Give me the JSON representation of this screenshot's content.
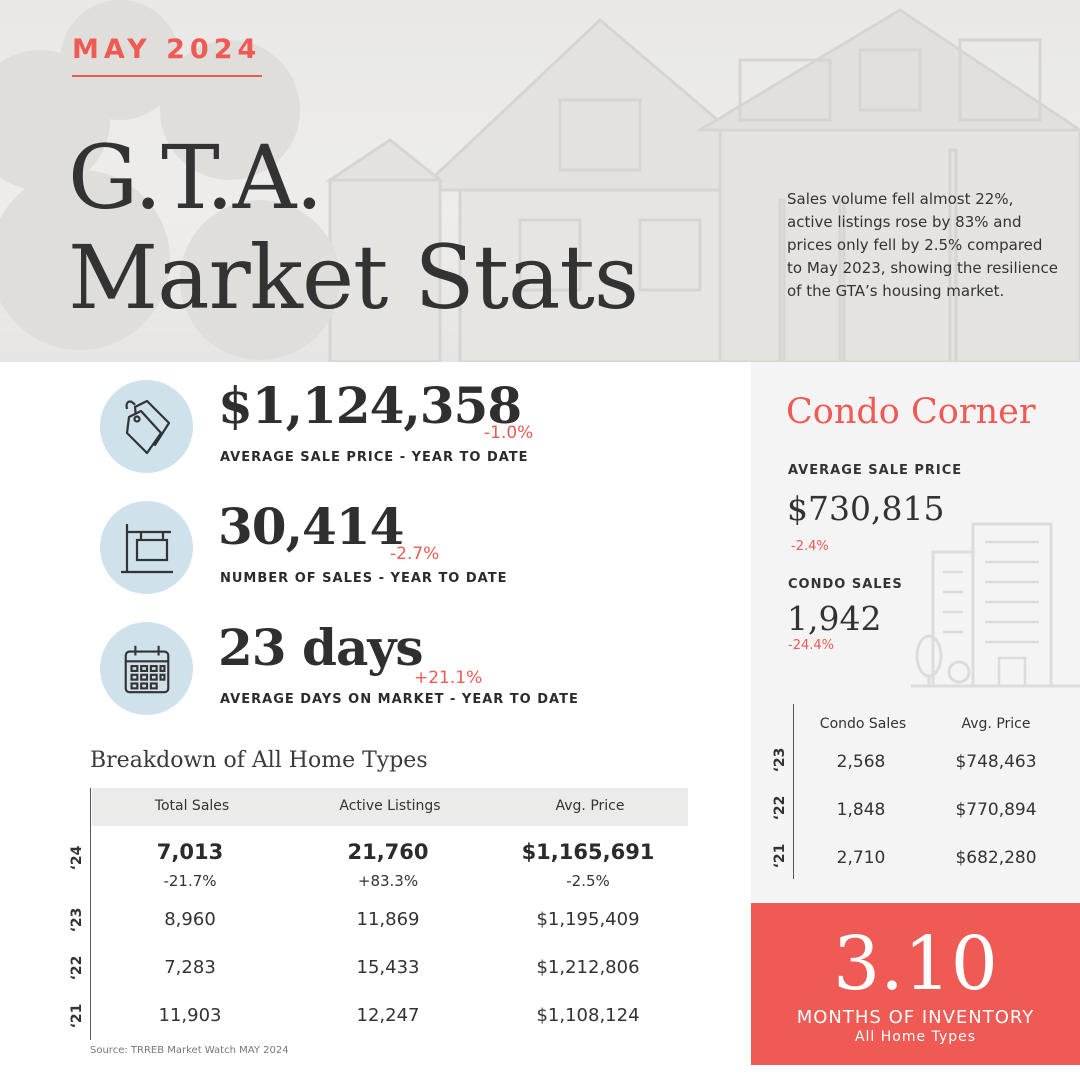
{
  "header": {
    "month": "MAY 2024",
    "title_line1": "G.T.A.",
    "title_line2": "Market Stats",
    "intro": "Sales volume fell almost 22%, active listings rose by 83% and prices only fell by 2.5% compared to May 2023, showing the resilience of the GTA’s housing market."
  },
  "stats": [
    {
      "icon": "price-tag-icon",
      "value": "$1,124,358",
      "change": "-1.0%",
      "label": "AVERAGE SALE PRICE - YEAR TO DATE"
    },
    {
      "icon": "sale-sign-icon",
      "value": "30,414",
      "change": "-2.7%",
      "label": "NUMBER OF SALES - YEAR TO DATE"
    },
    {
      "icon": "calendar-icon",
      "value": "23 days",
      "change": "+21.1%",
      "label": "AVERAGE DAYS ON MARKET - YEAR TO DATE"
    }
  ],
  "breakdown": {
    "title": "Breakdown of All Home Types",
    "columns": [
      "Total Sales",
      "Active Listings",
      "Avg. Price"
    ],
    "rows": [
      {
        "year": "‘24",
        "total_sales": "7,013",
        "total_sales_change": "-21.7%",
        "active_listings": "21,760",
        "active_listings_change": "+83.3%",
        "avg_price": "$1,165,691",
        "avg_price_change": "-2.5%"
      },
      {
        "year": "‘23",
        "total_sales": "8,960",
        "active_listings": "11,869",
        "avg_price": "$1,195,409"
      },
      {
        "year": "‘22",
        "total_sales": "7,283",
        "active_listings": "15,433",
        "avg_price": "$1,212,806"
      },
      {
        "year": "‘21",
        "total_sales": "11,903",
        "active_listings": "12,247",
        "avg_price": "$1,108,124"
      }
    ],
    "source": "Source: TRREB Market Watch MAY 2024"
  },
  "condo": {
    "title": "Condo Corner",
    "avg_price_label": "AVERAGE SALE PRICE",
    "avg_price_value": "$730,815",
    "avg_price_change": "-2.4%",
    "sales_label": "CONDO SALES",
    "sales_value": "1,942",
    "sales_change": "-24.4%",
    "columns": [
      "Condo Sales",
      "Avg. Price"
    ],
    "rows": [
      {
        "year": "‘23",
        "sales": "2,568",
        "price": "$748,463"
      },
      {
        "year": "‘22",
        "sales": "1,848",
        "price": "$770,894"
      },
      {
        "year": "‘21",
        "sales": "2,710",
        "price": "$682,280"
      }
    ]
  },
  "inventory": {
    "value": "3.10",
    "label": "MONTHS OF INVENTORY",
    "sub": "All Home Types"
  },
  "colors": {
    "accent": "#ef5a54",
    "icon_circle": "#cfe1ea",
    "condo_bg": "#f4f4f4",
    "text": "#2b2b2b"
  }
}
